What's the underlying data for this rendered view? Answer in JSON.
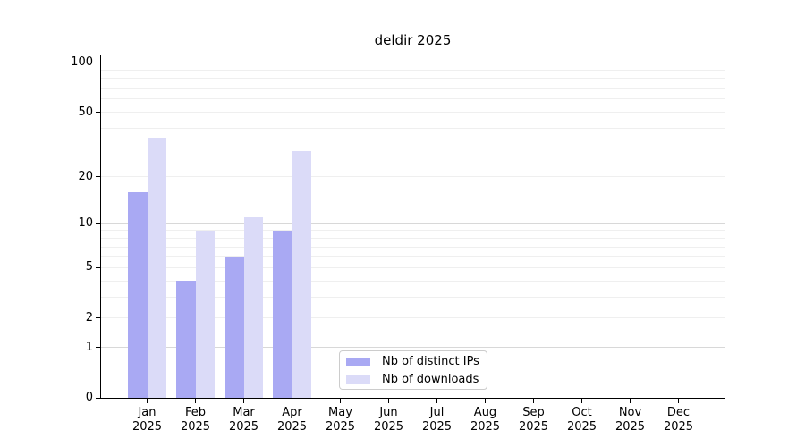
{
  "figure": {
    "title": "deldir 2025"
  },
  "chart_data": {
    "type": "bar",
    "title": "deldir 2025",
    "categories": [
      "Jan",
      "Feb",
      "Mar",
      "Apr",
      "May",
      "Jun",
      "Jul",
      "Aug",
      "Sep",
      "Oct",
      "Nov",
      "Dec"
    ],
    "x_year_label": "2025",
    "series": [
      {
        "name": "Nb of distinct IPs",
        "color": "#a9a9f3",
        "values": [
          16,
          4,
          6,
          9,
          0,
          0,
          0,
          0,
          0,
          0,
          0,
          0
        ]
      },
      {
        "name": "Nb of downloads",
        "color": "#dbdbf8",
        "values": [
          35,
          9,
          11,
          29,
          0,
          0,
          0,
          0,
          0,
          0,
          0,
          0
        ]
      }
    ],
    "y_scale": "log1p",
    "ylim": [
      0,
      110
    ],
    "y_ticks": [
      0,
      1,
      2,
      5,
      10,
      20,
      50,
      100
    ],
    "y_major_gridlines": [
      1,
      10,
      100
    ],
    "y_minor_gridlines": [
      2,
      3,
      4,
      5,
      6,
      7,
      8,
      9,
      20,
      30,
      40,
      50,
      60,
      70,
      80,
      90
    ],
    "grid": true,
    "legend_position": "inside-bottom-center",
    "colors": {
      "grid_major": "#d8d8d8",
      "grid_minor": "#efefef",
      "axis": "#000000",
      "background": "#ffffff"
    }
  }
}
